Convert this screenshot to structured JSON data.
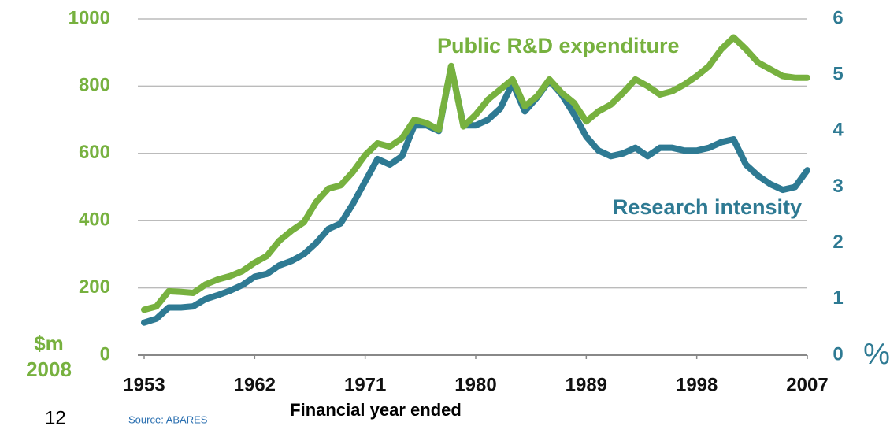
{
  "chart_data": {
    "type": "line",
    "x": [
      1953,
      1954,
      1955,
      1956,
      1957,
      1958,
      1959,
      1960,
      1961,
      1962,
      1963,
      1964,
      1965,
      1966,
      1967,
      1968,
      1969,
      1970,
      1971,
      1972,
      1973,
      1974,
      1975,
      1976,
      1977,
      1978,
      1979,
      1980,
      1981,
      1982,
      1983,
      1984,
      1985,
      1986,
      1987,
      1988,
      1989,
      1990,
      1991,
      1992,
      1993,
      1994,
      1995,
      1996,
      1997,
      1998,
      1999,
      2000,
      2001,
      2002,
      2003,
      2004,
      2005,
      2006,
      2007
    ],
    "series": [
      {
        "name": "Public R&D expenditure",
        "color": "#77b13f",
        "values": [
          135,
          145,
          190,
          188,
          185,
          210,
          225,
          235,
          250,
          275,
          295,
          340,
          370,
          395,
          455,
          495,
          505,
          545,
          595,
          630,
          620,
          645,
          700,
          690,
          670,
          860,
          680,
          715,
          760,
          790,
          820,
          740,
          770,
          820,
          780,
          750,
          695,
          725,
          745,
          780,
          820,
          800,
          775,
          785,
          805,
          830,
          860,
          910,
          945,
          910,
          870,
          850,
          830,
          825,
          825
        ]
      },
      {
        "name": "Research intensity",
        "color": "#2e7a93",
        "axis": "y2",
        "values": [
          0.58,
          0.65,
          0.85,
          0.85,
          0.87,
          1.0,
          1.07,
          1.15,
          1.25,
          1.4,
          1.45,
          1.6,
          1.68,
          1.8,
          2.0,
          2.25,
          2.35,
          2.7,
          3.1,
          3.5,
          3.4,
          3.55,
          4.1,
          4.1,
          4.0,
          5.15,
          4.1,
          4.1,
          4.2,
          4.4,
          4.85,
          4.35,
          4.6,
          4.9,
          4.65,
          4.3,
          3.9,
          3.65,
          3.55,
          3.6,
          3.7,
          3.55,
          3.7,
          3.7,
          3.65,
          3.65,
          3.7,
          3.8,
          3.85,
          3.4,
          3.2,
          3.05,
          2.95,
          3.0,
          3.3
        ]
      }
    ],
    "xlim": [
      1953,
      2007
    ],
    "xticks": [
      1953,
      1962,
      1971,
      1980,
      1989,
      1998,
      2007
    ],
    "ylim": [
      0,
      1000
    ],
    "yticks": [
      0,
      200,
      400,
      600,
      800,
      1000
    ],
    "y2lim": [
      0,
      6
    ],
    "y2ticks": [
      0,
      1,
      2,
      3,
      4,
      5,
      6
    ],
    "grid": true,
    "xlabel": "Financial year ended",
    "ylabel": [
      "$m",
      "2008"
    ],
    "y2label": "%",
    "source": "Source: ABARES",
    "page_number": "12"
  }
}
